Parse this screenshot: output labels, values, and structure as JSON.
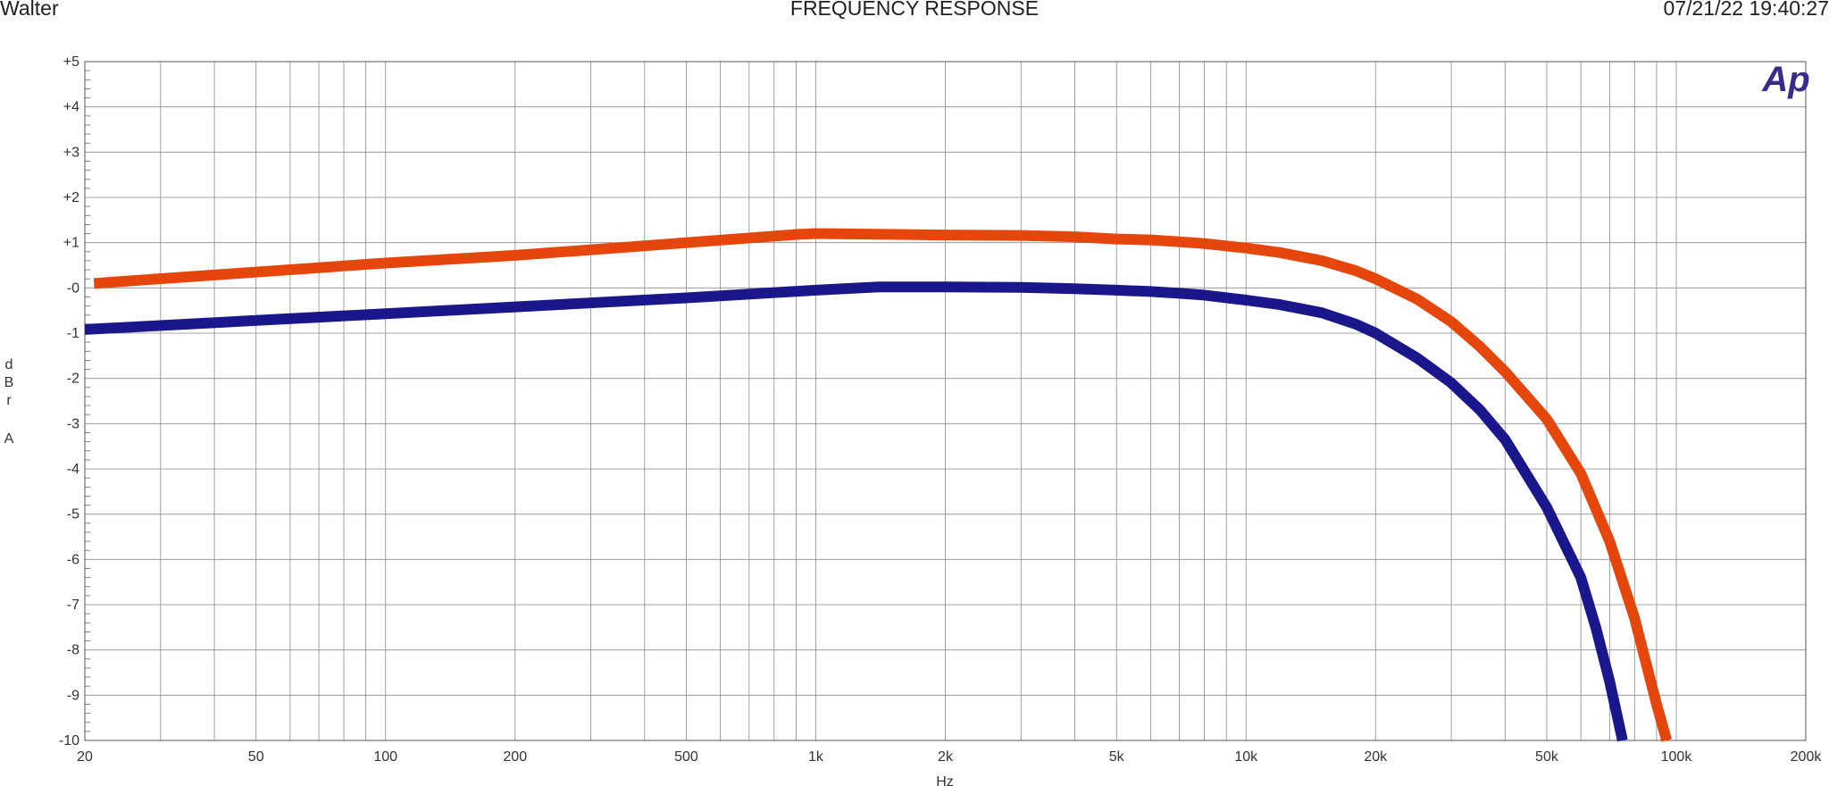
{
  "header": {
    "left_text": "Walter",
    "title": "FREQUENCY RESPONSE",
    "timestamp": "07/21/22 19:40:27"
  },
  "logo_text": "Ap",
  "chart_data": {
    "type": "line",
    "title": "FREQUENCY RESPONSE",
    "xlabel": "Hz",
    "ylabel": "dBrA",
    "xscale": "log",
    "xlim": [
      20,
      200000
    ],
    "ylim": [
      -10,
      5
    ],
    "grid": true,
    "x_tick_labels": [
      {
        "value": 20,
        "label": "20"
      },
      {
        "value": 50,
        "label": "50"
      },
      {
        "value": 100,
        "label": "100"
      },
      {
        "value": 200,
        "label": "200"
      },
      {
        "value": 500,
        "label": "500"
      },
      {
        "value": 1000,
        "label": "1k"
      },
      {
        "value": 2000,
        "label": "2k"
      },
      {
        "value": 5000,
        "label": "5k"
      },
      {
        "value": 10000,
        "label": "10k"
      },
      {
        "value": 20000,
        "label": "20k"
      },
      {
        "value": 50000,
        "label": "50k"
      },
      {
        "value": 100000,
        "label": "100k"
      },
      {
        "value": 200000,
        "label": "200k"
      }
    ],
    "y_tick_labels": [
      {
        "value": 5,
        "label": "+5"
      },
      {
        "value": 4,
        "label": "+4"
      },
      {
        "value": 3,
        "label": "+3"
      },
      {
        "value": 2,
        "label": "+2"
      },
      {
        "value": 1,
        "label": "+1"
      },
      {
        "value": 0,
        "label": "-0"
      },
      {
        "value": -1,
        "label": "-1"
      },
      {
        "value": -2,
        "label": "-2"
      },
      {
        "value": -3,
        "label": "-3"
      },
      {
        "value": -4,
        "label": "-4"
      },
      {
        "value": -5,
        "label": "-5"
      },
      {
        "value": -6,
        "label": "-6"
      },
      {
        "value": -7,
        "label": "-7"
      },
      {
        "value": -8,
        "label": "-8"
      },
      {
        "value": -9,
        "label": "-9"
      },
      {
        "value": -10,
        "label": "-10"
      }
    ],
    "series": [
      {
        "color": "#e5460c",
        "points": [
          [
            21,
            0.1
          ],
          [
            50,
            0.35
          ],
          [
            100,
            0.55
          ],
          [
            200,
            0.72
          ],
          [
            500,
            1.0
          ],
          [
            900,
            1.18
          ],
          [
            1000,
            1.2
          ],
          [
            2000,
            1.17
          ],
          [
            3000,
            1.16
          ],
          [
            4000,
            1.13
          ],
          [
            5000,
            1.08
          ],
          [
            6000,
            1.06
          ],
          [
            7000,
            1.02
          ],
          [
            8000,
            0.98
          ],
          [
            10000,
            0.88
          ],
          [
            12000,
            0.78
          ],
          [
            15000,
            0.6
          ],
          [
            18000,
            0.38
          ],
          [
            20000,
            0.2
          ],
          [
            25000,
            -0.25
          ],
          [
            30000,
            -0.75
          ],
          [
            35000,
            -1.3
          ],
          [
            40000,
            -1.85
          ],
          [
            50000,
            -2.9
          ],
          [
            60000,
            -4.1
          ],
          [
            70000,
            -5.6
          ],
          [
            80000,
            -7.3
          ],
          [
            90000,
            -9.2
          ],
          [
            95000,
            -10.0
          ]
        ]
      },
      {
        "color": "#1a168c",
        "points": [
          [
            20,
            -0.92
          ],
          [
            50,
            -0.72
          ],
          [
            100,
            -0.57
          ],
          [
            200,
            -0.42
          ],
          [
            500,
            -0.22
          ],
          [
            1000,
            -0.05
          ],
          [
            1400,
            0.02
          ],
          [
            2000,
            0.02
          ],
          [
            3000,
            0.01
          ],
          [
            4000,
            -0.02
          ],
          [
            5000,
            -0.05
          ],
          [
            6000,
            -0.08
          ],
          [
            7000,
            -0.12
          ],
          [
            8000,
            -0.16
          ],
          [
            10000,
            -0.27
          ],
          [
            12000,
            -0.37
          ],
          [
            15000,
            -0.55
          ],
          [
            18000,
            -0.8
          ],
          [
            20000,
            -1.0
          ],
          [
            25000,
            -1.55
          ],
          [
            30000,
            -2.1
          ],
          [
            35000,
            -2.7
          ],
          [
            40000,
            -3.35
          ],
          [
            50000,
            -4.85
          ],
          [
            60000,
            -6.4
          ],
          [
            65000,
            -7.5
          ],
          [
            70000,
            -8.7
          ],
          [
            75000,
            -10.0
          ]
        ]
      }
    ]
  }
}
